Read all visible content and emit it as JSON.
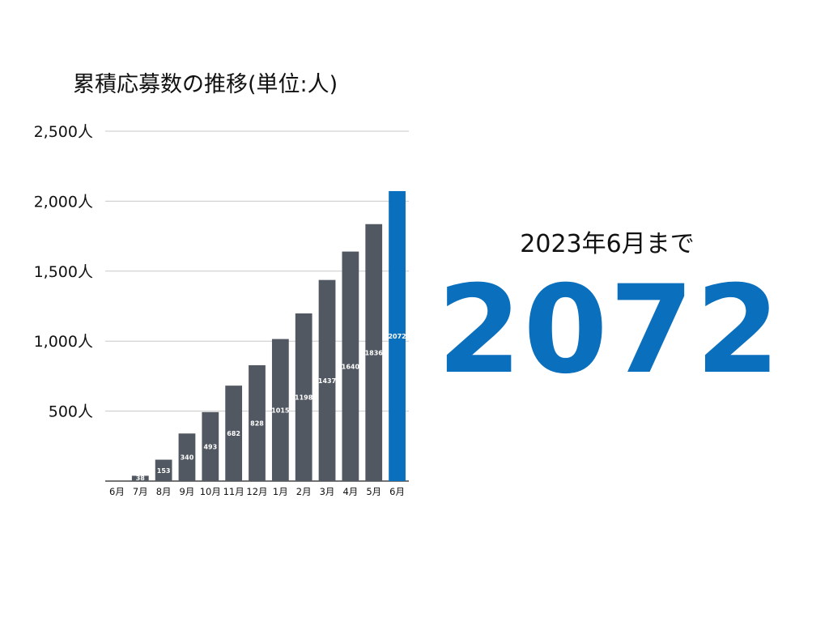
{
  "chart_data": {
    "type": "bar",
    "title": "累積応募数の推移(単位:人)",
    "categories": [
      "6月",
      "7月",
      "8月",
      "9月",
      "10月",
      "11月",
      "12月",
      "1月",
      "2月",
      "3月",
      "4月",
      "5月",
      "6月"
    ],
    "values": [
      0,
      38,
      153,
      340,
      493,
      682,
      828,
      1015,
      1198,
      1437,
      1640,
      1836,
      2072
    ],
    "data_labels": [
      "",
      "38",
      "153",
      "340",
      "493",
      "682",
      "828",
      "1015",
      "1198",
      "1437",
      "1640",
      "1836",
      "2072"
    ],
    "ylim": [
      0,
      2500
    ],
    "yticks": [
      500,
      1000,
      1500,
      2000,
      2500
    ],
    "ytick_labels": [
      "500人",
      "1,000人",
      "1,500人",
      "2,000人",
      "2,500人"
    ],
    "grid": true,
    "colors": {
      "bar": "#525861",
      "highlight": "#0a6fbd"
    },
    "highlight_index": 12
  },
  "summary": {
    "caption": "2023年6月まで",
    "total": "2072"
  }
}
